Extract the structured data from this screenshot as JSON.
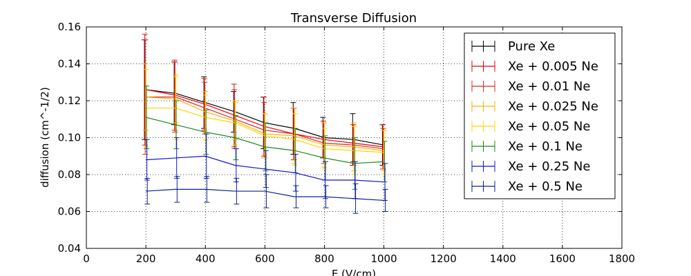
{
  "chart_data": {
    "type": "line",
    "title": "Transverse Diffusion",
    "xlabel": "E (V/cm)",
    "ylabel": "diffusion (cm^-1/2)",
    "xlim": [
      0,
      1800
    ],
    "ylim": [
      0.04,
      0.16
    ],
    "x_ticks": [
      0,
      200,
      400,
      600,
      800,
      1000,
      1200,
      1400,
      1600,
      1800
    ],
    "y_ticks": [
      0.04,
      0.06,
      0.08,
      0.1,
      0.12,
      0.14,
      0.16
    ],
    "x_tick_labels": [
      "0",
      "200",
      "400",
      "600",
      "800",
      "1000",
      "1200",
      "1400",
      "1600",
      "1800"
    ],
    "y_tick_labels": [
      "0.04",
      "0.06",
      "0.08",
      "0.10",
      "0.12",
      "0.14",
      "0.16"
    ],
    "grid": true,
    "legend_position": "top-right",
    "x": [
      200,
      300,
      400,
      500,
      600,
      700,
      800,
      900,
      1000
    ],
    "series": [
      {
        "name": "Pure Xe",
        "color": "#000000",
        "values": [
          0.126,
          0.124,
          0.119,
          0.114,
          0.108,
          0.105,
          0.1,
          0.099,
          0.096
        ],
        "errors": [
          0.027,
          0.017,
          0.014,
          0.011,
          0.014,
          0.014,
          0.011,
          0.014,
          0.011
        ]
      },
      {
        "name": "Xe + 0.005 Ne",
        "color": "#e8000b",
        "values": [
          0.126,
          0.123,
          0.118,
          0.112,
          0.106,
          0.102,
          0.099,
          0.097,
          0.095
        ],
        "errors": [
          0.03,
          0.019,
          0.014,
          0.017,
          0.016,
          0.014,
          0.01,
          0.01,
          0.012
        ]
      },
      {
        "name": "Xe + 0.01 Ne",
        "color": "#d62728",
        "values": [
          0.122,
          0.122,
          0.116,
          0.11,
          0.104,
          0.102,
          0.097,
          0.096,
          0.094
        ],
        "errors": [
          0.031,
          0.019,
          0.014,
          0.016,
          0.015,
          0.014,
          0.011,
          0.011,
          0.011
        ]
      },
      {
        "name": "Xe + 0.025 Ne",
        "color": "#ffb000",
        "values": [
          0.122,
          0.121,
          0.114,
          0.109,
          0.102,
          0.101,
          0.096,
          0.095,
          0.093
        ],
        "errors": [
          0.018,
          0.013,
          0.011,
          0.01,
          0.011,
          0.015,
          0.012,
          0.013,
          0.011
        ]
      },
      {
        "name": "Xe + 0.05 Ne",
        "color": "#ffd400",
        "values": [
          0.116,
          0.116,
          0.111,
          0.108,
          0.101,
          0.099,
          0.094,
          0.093,
          0.092
        ],
        "errors": [
          0.021,
          0.017,
          0.012,
          0.012,
          0.012,
          0.014,
          0.011,
          0.013,
          0.012
        ]
      },
      {
        "name": "Xe + 0.1 Ne",
        "color": "#138a14",
        "values": [
          0.111,
          0.107,
          0.103,
          0.1,
          0.095,
          0.093,
          0.089,
          0.086,
          0.087
        ],
        "errors": [
          0.017,
          0.013,
          0.012,
          0.012,
          0.013,
          0.012,
          0.012,
          0.014,
          0.011
        ]
      },
      {
        "name": "Xe + 0.25 Ne",
        "color": "#1212d4",
        "values": [
          0.088,
          0.089,
          0.09,
          0.085,
          0.083,
          0.081,
          0.077,
          0.077,
          0.076
        ],
        "errors": [
          0.011,
          0.011,
          0.012,
          0.009,
          0.01,
          0.01,
          0.01,
          0.01,
          0.01
        ]
      },
      {
        "name": "Xe + 0.5 Ne",
        "color": "#0a1f8f",
        "values": [
          0.071,
          0.072,
          0.072,
          0.071,
          0.071,
          0.068,
          0.068,
          0.067,
          0.066
        ],
        "errors": [
          0.007,
          0.007,
          0.007,
          0.007,
          0.009,
          0.006,
          0.006,
          0.008,
          0.006
        ]
      }
    ]
  }
}
